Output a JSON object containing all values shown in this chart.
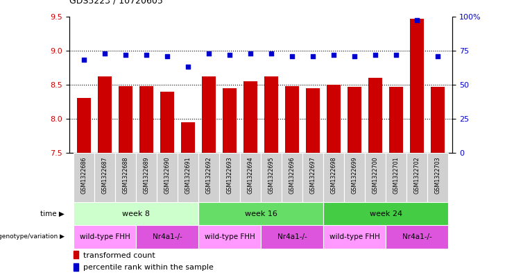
{
  "title": "GDS5223 / 10720605",
  "samples": [
    "GSM1322686",
    "GSM1322687",
    "GSM1322688",
    "GSM1322689",
    "GSM1322690",
    "GSM1322691",
    "GSM1322692",
    "GSM1322693",
    "GSM1322694",
    "GSM1322695",
    "GSM1322696",
    "GSM1322697",
    "GSM1322698",
    "GSM1322699",
    "GSM1322700",
    "GSM1322701",
    "GSM1322702",
    "GSM1322703"
  ],
  "transformed_count": [
    8.3,
    8.62,
    8.48,
    8.48,
    8.4,
    7.95,
    8.62,
    8.45,
    8.55,
    8.62,
    8.48,
    8.45,
    8.5,
    8.47,
    8.6,
    8.47,
    9.47,
    8.47
  ],
  "percentile_rank": [
    68,
    73,
    72,
    72,
    71,
    63,
    73,
    72,
    73,
    73,
    71,
    71,
    72,
    71,
    72,
    72,
    97,
    71
  ],
  "ylim_left": [
    7.5,
    9.5
  ],
  "ylim_right": [
    0,
    100
  ],
  "yticks_left": [
    7.5,
    8.0,
    8.5,
    9.0,
    9.5
  ],
  "yticks_right": [
    0,
    25,
    50,
    75,
    100
  ],
  "bar_color": "#cc0000",
  "dot_color": "#0000cc",
  "time_groups": [
    {
      "label": "week 8",
      "start": 0,
      "end": 5,
      "color": "#ccffcc"
    },
    {
      "label": "week 16",
      "start": 6,
      "end": 11,
      "color": "#66dd66"
    },
    {
      "label": "week 24",
      "start": 12,
      "end": 17,
      "color": "#44cc44"
    }
  ],
  "genotype_groups": [
    {
      "label": "wild-type FHH",
      "start": 0,
      "end": 2,
      "color": "#ff99ff"
    },
    {
      "label": "Nr4a1-/-",
      "start": 3,
      "end": 5,
      "color": "#dd55dd"
    },
    {
      "label": "wild-type FHH",
      "start": 6,
      "end": 8,
      "color": "#ff99ff"
    },
    {
      "label": "Nr4a1-/-",
      "start": 9,
      "end": 11,
      "color": "#dd55dd"
    },
    {
      "label": "wild-type FHH",
      "start": 12,
      "end": 14,
      "color": "#ff99ff"
    },
    {
      "label": "Nr4a1-/-",
      "start": 15,
      "end": 17,
      "color": "#dd55dd"
    }
  ],
  "legend_items": [
    {
      "label": "transformed count",
      "color": "#cc0000"
    },
    {
      "label": "percentile rank within the sample",
      "color": "#0000cc"
    }
  ],
  "sample_bg_color": "#d0d0d0",
  "fig_bg": "#ffffff"
}
